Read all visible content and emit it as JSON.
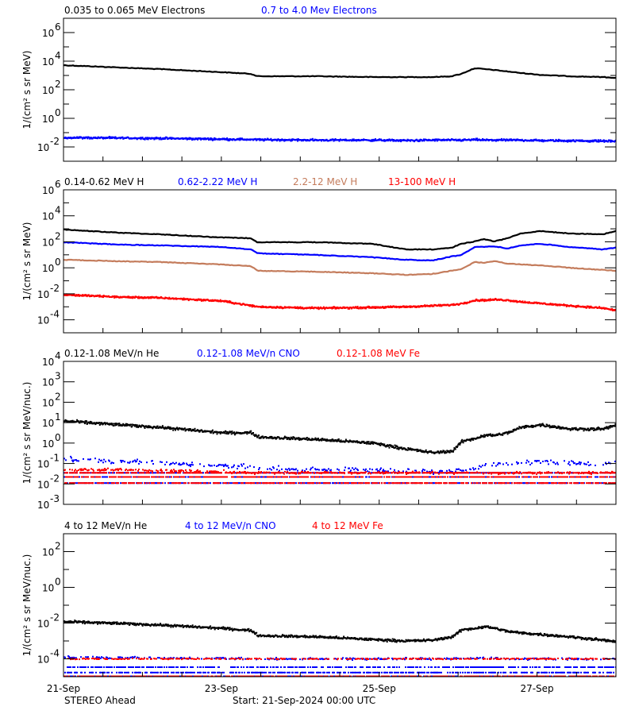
{
  "chart_data": {
    "type": "scatter",
    "x_scale": "time",
    "xlim": [
      "2024-09-21T00:00",
      "2024-09-28T00:00"
    ],
    "x_tick_interval_hours": 12,
    "x_tick_labels": [
      {
        "time": "2024-09-21T00:00",
        "label": "21-Sep"
      },
      {
        "time": "2024-09-23T00:00",
        "label": "23-Sep"
      },
      {
        "time": "2024-09-25T00:00",
        "label": "25-Sep"
      },
      {
        "time": "2024-09-27T00:00",
        "label": "27-Sep"
      }
    ],
    "times": [
      "2024-09-21T00:00",
      "2024-09-21T17:00",
      "2024-09-22T05:00",
      "2024-09-23T00:00",
      "2024-09-23T09:00",
      "2024-09-23T11:00",
      "2024-09-24T05:00",
      "2024-09-24T22:00",
      "2024-09-25T08:00",
      "2024-09-25T16:00",
      "2024-09-25T22:00",
      "2024-09-26T01:00",
      "2024-09-26T05:00",
      "2024-09-26T08:00",
      "2024-09-26T11:00",
      "2024-09-26T15:00",
      "2024-09-26T19:00",
      "2024-09-27T01:00",
      "2024-09-27T10:00",
      "2024-09-27T20:00",
      "2024-09-28T00:00"
    ],
    "panels": [
      {
        "ylabel": "1/(cm² s sr MeV)",
        "y_scale": "log",
        "ylim": [
          0.001,
          10000000
        ],
        "y_ticks": [
          {
            "value": 0.01,
            "base": "10",
            "exp": "-2"
          },
          {
            "value": 1,
            "base": "10",
            "exp": "0"
          },
          {
            "value": 100,
            "base": "10",
            "exp": "2"
          },
          {
            "value": 10000,
            "base": "10",
            "exp": "4"
          },
          {
            "value": 1000000,
            "base": "10",
            "exp": "6"
          }
        ],
        "y_minor_ticks": [
          0.1,
          10,
          1000,
          100000
        ],
        "series": [
          {
            "name": "0.035 to 0.065 MeV Electrons",
            "color": "#000000",
            "style": "line",
            "noise": 0.0,
            "values": [
              5200,
              3600,
              2800,
              1700,
              1300,
              880,
              880,
              770,
              770,
              770,
              880,
              1300,
              3200,
              2800,
              2400,
              1900,
              1500,
              1100,
              880,
              770,
              680
            ]
          },
          {
            "name": "0.7 to 4.0 Mev Electrons",
            "color": "#0000ff",
            "style": "scatter",
            "noise": 0.12,
            "values": [
              0.045,
              0.042,
              0.04,
              0.035,
              0.033,
              0.032,
              0.03,
              0.03,
              0.028,
              0.03,
              0.03,
              0.03,
              0.032,
              0.03,
              0.03,
              0.03,
              0.03,
              0.028,
              0.027,
              0.026,
              0.025
            ]
          }
        ]
      },
      {
        "ylabel": "1/(cm² s sr MeV)",
        "y_scale": "log",
        "ylim": [
          1e-05,
          1000000
        ],
        "y_ticks": [
          {
            "value": 0.0001,
            "base": "10",
            "exp": "-4"
          },
          {
            "value": 0.01,
            "base": "10",
            "exp": "-2"
          },
          {
            "value": 1,
            "base": "10",
            "exp": "0"
          },
          {
            "value": 100,
            "base": "10",
            "exp": "2"
          },
          {
            "value": 10000,
            "base": "10",
            "exp": "4"
          },
          {
            "value": 1000000,
            "base": "10",
            "exp": "6"
          }
        ],
        "y_minor_ticks": [
          0.001,
          0.1,
          10,
          1000,
          100000
        ],
        "series": [
          {
            "name": "0.14-0.62 MeV H",
            "color": "#000000",
            "style": "line",
            "noise": 0.0,
            "values": [
              870,
              500,
              380,
              215,
              190,
              93,
              93,
              70,
              26,
              26,
              35,
              70,
              107,
              163,
              107,
              190,
              440,
              660,
              440,
              380,
              660
            ]
          },
          {
            "name": "0.62-2.22 MeV H",
            "color": "#0000ff",
            "style": "line",
            "noise": 0.0,
            "values": [
              93,
              61,
              53,
              40,
              26,
              13,
              9.8,
              6.4,
              4.2,
              3.6,
              7.4,
              9.8,
              40,
              40,
              46,
              30,
              53,
              70,
              40,
              26,
              35
            ]
          },
          {
            "name": "2.2-12 MeV H",
            "color": "#c47c5c",
            "style": "line",
            "noise": 0.0,
            "values": [
              4.2,
              3.2,
              2.8,
              1.8,
              1.35,
              0.59,
              0.5,
              0.38,
              0.29,
              0.33,
              0.59,
              0.78,
              2.8,
              2.4,
              3.2,
              2.1,
              1.8,
              1.55,
              1.0,
              0.68,
              0.59
            ]
          },
          {
            "name": "13-100 MeV H",
            "color": "#ff0000",
            "style": "scatter",
            "noise": 0.12,
            "values": [
              0.0085,
              0.0056,
              0.0049,
              0.0028,
              0.0012,
              0.001,
              0.00078,
              0.0009,
              0.001,
              0.0012,
              0.0014,
              0.0018,
              0.0032,
              0.0032,
              0.0036,
              0.0032,
              0.0024,
              0.0018,
              0.0012,
              0.00078,
              0.00051
            ]
          }
        ]
      },
      {
        "ylabel": "1/(cm² s sr MeV/nuc.)",
        "y_scale": "log",
        "ylim": [
          0.001,
          10000
        ],
        "y_ticks": [
          {
            "value": 0.001,
            "base": "10",
            "exp": "-3"
          },
          {
            "value": 0.01,
            "base": "10",
            "exp": "-2"
          },
          {
            "value": 0.1,
            "base": "10",
            "exp": "-1"
          },
          {
            "value": 1,
            "base": "10",
            "exp": "0"
          },
          {
            "value": 10,
            "base": "10",
            "exp": "1"
          },
          {
            "value": 100,
            "base": "10",
            "exp": "2"
          },
          {
            "value": 1000,
            "base": "10",
            "exp": "3"
          },
          {
            "value": 10000,
            "base": "10",
            "exp": "4"
          }
        ],
        "y_minor_ticks": [],
        "series": [
          {
            "name": "0.12-1.08 MeV/n He",
            "color": "#000000",
            "style": "scatter",
            "noise": 0.12,
            "values": [
              12,
              7.8,
              5.9,
              3.2,
              3.2,
              2.0,
              1.5,
              1.0,
              0.52,
              0.34,
              0.4,
              1.2,
              1.7,
              2.4,
              2.4,
              3.2,
              5.9,
              7.8,
              4.9,
              4.9,
              7.8
            ]
          },
          {
            "name": "0.12-1.08 MeV/n CNO",
            "color": "#0000ff",
            "style": "sparse",
            "noise": 0.2,
            "floor_levels": [
              0.035,
              0.022,
              0.011
            ],
            "values": [
              0.16,
              0.13,
              0.11,
              0.08,
              0.07,
              0.06,
              0.05,
              0.05,
              0.04,
              0.04,
              0.04,
              0.05,
              0.06,
              0.08,
              0.09,
              0.1,
              0.12,
              0.12,
              0.11,
              0.1,
              0.12
            ]
          },
          {
            "name": "0.12-1.08 MeV Fe",
            "color": "#ff0000",
            "style": "sparse",
            "noise": 0.1,
            "floor_levels": [
              0.035,
              0.022,
              0.011
            ],
            "values": [
              0.05,
              0.05,
              0.045,
              0.04,
              0.035,
              0.035,
              0.035,
              0.035,
              0.035,
              0.035,
              0.035,
              0.035,
              0.035,
              0.035,
              0.035,
              0.035,
              0.035,
              0.035,
              0.035,
              0.035,
              0.035
            ]
          }
        ]
      },
      {
        "ylabel": "1/(cm² s sr MeV/nuc.)",
        "y_scale": "log",
        "ylim": [
          1e-05,
          1000
        ],
        "y_ticks": [
          {
            "value": 0.0001,
            "base": "10",
            "exp": "-4"
          },
          {
            "value": 0.01,
            "base": "10",
            "exp": "-2"
          },
          {
            "value": 1,
            "base": "10",
            "exp": "0"
          },
          {
            "value": 100,
            "base": "10",
            "exp": "2"
          }
        ],
        "y_minor_ticks": [
          0.001,
          0.1,
          10
        ],
        "series": [
          {
            "name": "4 to 12 MeV/n He",
            "color": "#000000",
            "style": "scatter",
            "noise": 0.12,
            "values": [
              0.012,
              0.0095,
              0.0078,
              0.0051,
              0.0038,
              0.002,
              0.0017,
              0.0012,
              0.001,
              0.0011,
              0.0017,
              0.0042,
              0.0051,
              0.0063,
              0.0051,
              0.0034,
              0.0028,
              0.0023,
              0.0017,
              0.0011,
              0.0009
            ]
          },
          {
            "name": "4 to 12 MeV/n CNO",
            "color": "#0000ff",
            "style": "sparse",
            "noise": 0.1,
            "floor_levels": [
              3.4e-05,
              1.7e-05,
              1.05e-05
            ],
            "values": [
              0.00012,
              0.00012,
              0.00011,
              0.00011,
              0.0001,
              0.0001,
              0.0001,
              0.0001,
              0.0001,
              0.0001,
              0.0001,
              0.00011,
              0.00011,
              0.00011,
              0.00011,
              0.0001,
              0.0001,
              0.0001,
              0.0001,
              0.0001,
              0.0001
            ]
          },
          {
            "name": "4 to 12 MeV Fe",
            "color": "#ff0000",
            "style": "sparse",
            "noise": 0.05,
            "floor_levels": [
              1.05e-05
            ],
            "values": [
              0.0001,
              0.0001,
              0.0001,
              0.0001,
              0.0001,
              0.0001,
              0.0001,
              0.0001,
              0.0001,
              0.0001,
              0.0001,
              0.0001,
              0.0001,
              0.0001,
              0.0001,
              0.0001,
              0.0001,
              0.0001,
              0.0001,
              0.0001,
              0.0001
            ]
          }
        ]
      }
    ],
    "footer": {
      "spacecraft": "STEREO Ahead",
      "start": "Start: 21-Sep-2024 00:00 UTC"
    }
  }
}
